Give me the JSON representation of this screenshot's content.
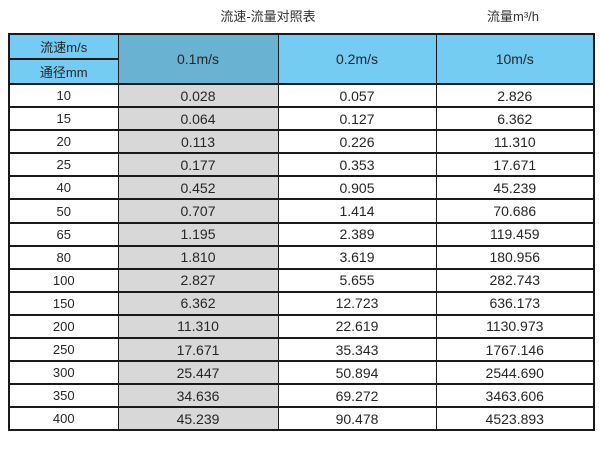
{
  "titles": {
    "main": "流速-流量对照表",
    "unit": "流量m³/h"
  },
  "table": {
    "corner": {
      "top": "流速m/s",
      "bottom": "通径mm"
    },
    "columns": [
      "0.1m/s",
      "0.2m/s",
      "10m/s"
    ],
    "rows": [
      {
        "diameter": "10",
        "v_0_1": "0.028",
        "v_0_2": "0.057",
        "v_10": "2.826"
      },
      {
        "diameter": "15",
        "v_0_1": "0.064",
        "v_0_2": "0.127",
        "v_10": "6.362"
      },
      {
        "diameter": "20",
        "v_0_1": "0.113",
        "v_0_2": "0.226",
        "v_10": "11.310"
      },
      {
        "diameter": "25",
        "v_0_1": "0.177",
        "v_0_2": "0.353",
        "v_10": "17.671"
      },
      {
        "diameter": "40",
        "v_0_1": "0.452",
        "v_0_2": "0.905",
        "v_10": "45.239"
      },
      {
        "diameter": "50",
        "v_0_1": "0.707",
        "v_0_2": "1.414",
        "v_10": "70.686"
      },
      {
        "diameter": "65",
        "v_0_1": "1.195",
        "v_0_2": "2.389",
        "v_10": "119.459"
      },
      {
        "diameter": "80",
        "v_0_1": "1.810",
        "v_0_2": "3.619",
        "v_10": "180.956"
      },
      {
        "diameter": "100",
        "v_0_1": "2.827",
        "v_0_2": "5.655",
        "v_10": "282.743"
      },
      {
        "diameter": "150",
        "v_0_1": "6.362",
        "v_0_2": "12.723",
        "v_10": "636.173"
      },
      {
        "diameter": "200",
        "v_0_1": "11.310",
        "v_0_2": "22.619",
        "v_10": "1130.973"
      },
      {
        "diameter": "250",
        "v_0_1": "17.671",
        "v_0_2": "35.343",
        "v_10": "1767.146"
      },
      {
        "diameter": "300",
        "v_0_1": "25.447",
        "v_0_2": "50.894",
        "v_10": "2544.690"
      },
      {
        "diameter": "350",
        "v_0_1": "34.636",
        "v_0_2": "69.272",
        "v_10": "3463.606"
      },
      {
        "diameter": "400",
        "v_0_1": "45.239",
        "v_0_2": "90.478",
        "v_10": "4523.893"
      }
    ]
  },
  "colors": {
    "header_light": "#74CCF3",
    "header_dark": "#69B2D2",
    "column_gray": "#D8D8D8",
    "border": "#1A1A1A"
  },
  "chart_data": {
    "type": "table",
    "title": "流速-流量对照表",
    "unit_label": "流量m³/h",
    "columns": [
      "通径mm",
      "0.1m/s",
      "0.2m/s",
      "10m/s"
    ],
    "rows": [
      [
        10,
        0.028,
        0.057,
        2.826
      ],
      [
        15,
        0.064,
        0.127,
        6.362
      ],
      [
        20,
        0.113,
        0.226,
        11.31
      ],
      [
        25,
        0.177,
        0.353,
        17.671
      ],
      [
        40,
        0.452,
        0.905,
        45.239
      ],
      [
        50,
        0.707,
        1.414,
        70.686
      ],
      [
        65,
        1.195,
        2.389,
        119.459
      ],
      [
        80,
        1.81,
        3.619,
        180.956
      ],
      [
        100,
        2.827,
        5.655,
        282.743
      ],
      [
        150,
        6.362,
        12.723,
        636.173
      ],
      [
        200,
        11.31,
        22.619,
        1130.973
      ],
      [
        250,
        17.671,
        35.343,
        1767.146
      ],
      [
        300,
        25.447,
        50.894,
        2544.69
      ],
      [
        350,
        34.636,
        69.272,
        3463.606
      ],
      [
        400,
        45.239,
        90.478,
        4523.893
      ]
    ]
  }
}
